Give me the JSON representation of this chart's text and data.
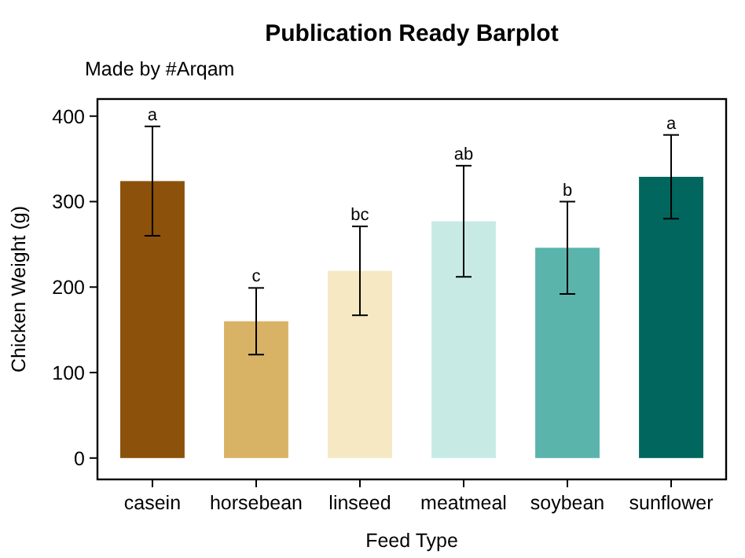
{
  "chart_data": {
    "type": "bar",
    "title": "Publication Ready Barplot",
    "subtitle": "Made by #Arqam",
    "xlabel": "Feed Type",
    "ylabel": "Chicken Weight (g)",
    "categories": [
      "casein",
      "horsebean",
      "linseed",
      "meatmeal",
      "soybean",
      "sunflower"
    ],
    "values": [
      324,
      160,
      219,
      277,
      246,
      329
    ],
    "errors": [
      64,
      39,
      52,
      65,
      54,
      49
    ],
    "colors": [
      "#8c510a",
      "#d8b365",
      "#f6e8c3",
      "#c7eae5",
      "#5ab4ac",
      "#01665e"
    ],
    "ylim": [
      -25,
      420
    ],
    "yticks": [
      0,
      100,
      200,
      300,
      400
    ],
    "grid": false,
    "annotations": [
      {
        "text": "a",
        "x": "casein",
        "y": 388
      },
      {
        "text": "c",
        "x": "horsebean",
        "y": 199
      },
      {
        "text": "bc",
        "x": "linseed",
        "y": 271
      },
      {
        "text": "ab",
        "x": "meatmeal",
        "y": 342
      },
      {
        "text": "b",
        "x": "soybean",
        "y": 300
      },
      {
        "text": "a",
        "x": "sunflower",
        "y": 378
      }
    ]
  }
}
